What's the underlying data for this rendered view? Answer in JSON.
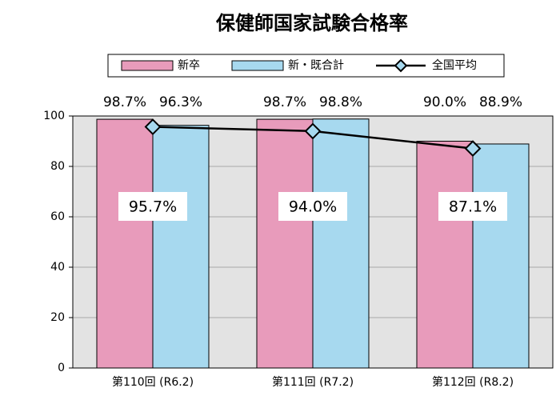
{
  "chart_data": {
    "type": "bar",
    "title": "保健師国家試験合格率",
    "categories": [
      "第110回 (R6.2)",
      "第111回 (R7.2)",
      "第112回 (R8.2)"
    ],
    "series": [
      {
        "name": "新卒",
        "color": "#e89bbb",
        "values": [
          98.7,
          98.7,
          90.0
        ],
        "value_labels": [
          "98.7%",
          "98.7%",
          "90.0%"
        ]
      },
      {
        "name": "新・既合計",
        "color": "#a7d9ef",
        "values": [
          96.3,
          98.8,
          88.9
        ],
        "value_labels": [
          "96.3%",
          "98.8%",
          "88.9%"
        ]
      },
      {
        "name": "全国平均",
        "type": "line",
        "color": "#000000",
        "values": [
          95.7,
          94.0,
          87.1
        ],
        "value_labels": [
          "95.7%",
          "94.0%",
          "87.1%"
        ]
      }
    ],
    "ylim": [
      0,
      100
    ],
    "yticks": [
      0,
      20,
      40,
      60,
      80,
      100
    ],
    "grid": true
  }
}
